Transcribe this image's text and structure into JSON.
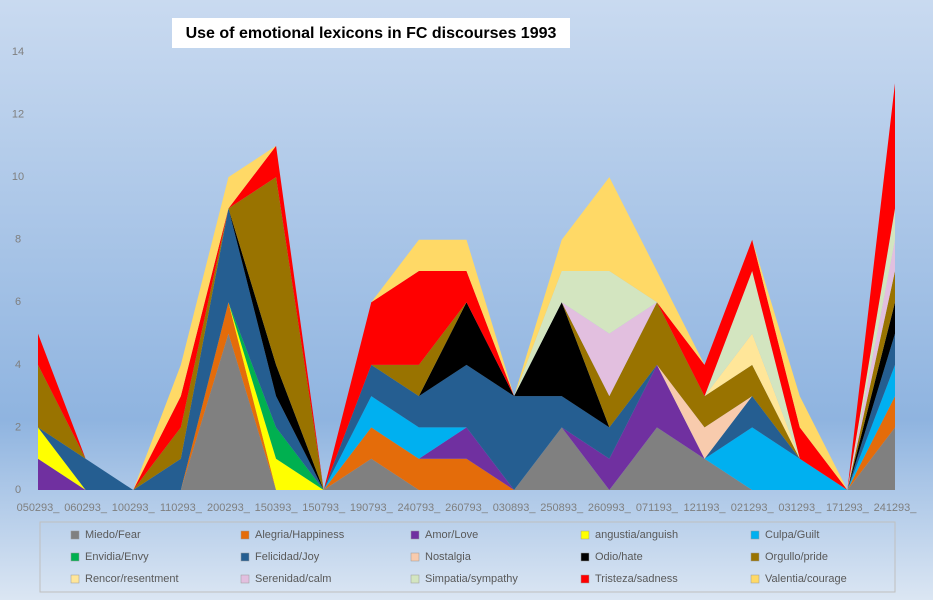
{
  "chart_data": {
    "type": "stacked_area",
    "title": "Use of emotional lexicons in FC discourses 1993",
    "categories": [
      "050293_",
      "060293_",
      "100293_",
      "110293_",
      "200293_",
      "150393_",
      "150793_",
      "190793_",
      "240793_",
      "260793_",
      "030893_",
      "250893_",
      "260993_",
      "071193_",
      "121193_",
      "021293_",
      "031293_",
      "171293_",
      "241293_"
    ],
    "ylim": [
      0,
      14
    ],
    "yticks": [
      0,
      2,
      4,
      6,
      8,
      10,
      12,
      14
    ],
    "series": [
      {
        "name": "Miedo/Fear",
        "color": "#808080",
        "values": [
          0,
          0,
          0,
          0,
          5,
          0,
          0,
          1,
          0,
          0,
          0,
          2,
          0,
          2,
          1,
          0,
          0,
          0,
          2
        ]
      },
      {
        "name": "Alegria/Happiness",
        "color": "#e46c0a",
        "values": [
          0,
          0,
          0,
          0,
          1,
          0,
          0,
          1,
          1,
          1,
          0,
          0,
          0,
          0,
          0,
          0,
          0,
          0,
          1
        ]
      },
      {
        "name": "Amor/Love",
        "color": "#7030a0",
        "values": [
          1,
          0,
          0,
          0,
          0,
          0,
          0,
          0,
          0,
          1,
          0,
          0,
          1,
          2,
          0,
          0,
          0,
          0,
          0
        ]
      },
      {
        "name": "angustia/anguish",
        "color": "#ffff00",
        "values": [
          1,
          0,
          0,
          0,
          0,
          1,
          0,
          0,
          0,
          0,
          0,
          0,
          0,
          0,
          0,
          0,
          0,
          0,
          0
        ]
      },
      {
        "name": "Culpa/Guilt",
        "color": "#00b0f0",
        "values": [
          0,
          0,
          0,
          0,
          0,
          0,
          0,
          1,
          1,
          0,
          0,
          0,
          0,
          0,
          0,
          2,
          1,
          0,
          1
        ]
      },
      {
        "name": "Envidia/Envy",
        "color": "#00b050",
        "values": [
          0,
          0,
          0,
          0,
          0,
          1,
          0,
          0,
          0,
          0,
          0,
          0,
          0,
          0,
          0,
          0,
          0,
          0,
          0
        ]
      },
      {
        "name": "Felicidad/Joy",
        "color": "#255e91",
        "values": [
          0,
          1,
          0,
          1,
          3,
          1,
          0,
          1,
          1,
          2,
          3,
          1,
          1,
          0,
          0,
          1,
          0,
          0,
          1
        ]
      },
      {
        "name": "Nostalgia",
        "color": "#f8cbad",
        "values": [
          0,
          0,
          0,
          0,
          0,
          0,
          0,
          0,
          0,
          0,
          0,
          0,
          0,
          0,
          1,
          0,
          0,
          0,
          0
        ]
      },
      {
        "name": "Odio/hate",
        "color": "#000000",
        "values": [
          0,
          0,
          0,
          0,
          0,
          1,
          0,
          0,
          0,
          2,
          0,
          3,
          0,
          0,
          0,
          0,
          0,
          0,
          1
        ]
      },
      {
        "name": "Orgullo/pride",
        "color": "#997300",
        "values": [
          2,
          0,
          0,
          1,
          0,
          6,
          0,
          0,
          1,
          0,
          0,
          0,
          1,
          2,
          1,
          1,
          0,
          0,
          1
        ]
      },
      {
        "name": "Rencor/resentment",
        "color": "#ffe699",
        "values": [
          0,
          0,
          0,
          0,
          0,
          0,
          0,
          0,
          0,
          0,
          0,
          0,
          0,
          0,
          0,
          1,
          0,
          0,
          0
        ]
      },
      {
        "name": "Serenidad/calm",
        "color": "#e2bfdf",
        "values": [
          0,
          0,
          0,
          0,
          0,
          0,
          0,
          0,
          0,
          0,
          0,
          0,
          2,
          0,
          0,
          0,
          0,
          0,
          1
        ]
      },
      {
        "name": "Simpatia/sympathy",
        "color": "#d3e5c0",
        "values": [
          0,
          0,
          0,
          0,
          0,
          0,
          0,
          0,
          0,
          0,
          0,
          1,
          2,
          0,
          0,
          2,
          0,
          0,
          1
        ]
      },
      {
        "name": "Tristeza/sadness",
        "color": "#ff0000",
        "values": [
          1,
          0,
          0,
          1,
          0,
          1,
          0,
          2,
          3,
          1,
          0,
          0,
          0,
          0,
          1,
          1,
          1,
          0,
          4
        ]
      },
      {
        "name": "Valentia/courage",
        "color": "#ffd966",
        "values": [
          0,
          0,
          0,
          1,
          1,
          0,
          0,
          0,
          1,
          1,
          0,
          1,
          3,
          1,
          0,
          0,
          1,
          0,
          0
        ]
      }
    ]
  }
}
